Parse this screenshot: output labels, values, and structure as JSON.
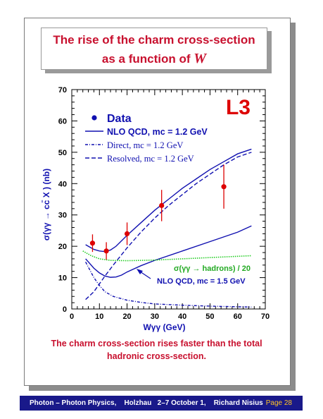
{
  "slide": {
    "title_line1": "The rise of the charm cross-section",
    "title_line2": "as a function of ",
    "title_symbol": "W",
    "caption_line1": "The charm cross-section rises faster than the total",
    "caption_line2": "hadronic cross-section."
  },
  "footer": {
    "text": "Photon – Photon Physics,    Holzhau   2–7 October 1,    Richard Nisius",
    "page": "Page 28"
  },
  "chart_data": {
    "type": "line",
    "title": "L3",
    "xlabel": "Wγγ  (GeV)",
    "ylabel": "σ(γγ → cc̄ X )  (nb)",
    "xlim": [
      0,
      70
    ],
    "ylim": [
      0,
      70
    ],
    "x_ticks": [
      0,
      10,
      20,
      30,
      40,
      50,
      60,
      70
    ],
    "y_ticks": [
      0,
      10,
      20,
      30,
      40,
      50,
      60,
      70
    ],
    "legend": [
      "Data",
      "NLO QCD, mc = 1.2 GeV",
      "Direct, mc = 1.2 GeV",
      "Resolved, mc = 1.2 GeV"
    ],
    "annotations": [
      "σ(γγ → hadrons) / 20",
      "NLO QCD, mc = 1.5 GeV"
    ],
    "series": [
      {
        "name": "Data",
        "style": "points",
        "color": "#dd0000",
        "x": [
          7.5,
          12.5,
          20,
          32.5,
          55
        ],
        "y": [
          21,
          18.5,
          24,
          33,
          39
        ],
        "err": [
          2.8,
          2.8,
          3.6,
          5.0,
          7.0
        ]
      },
      {
        "name": "NLO QCD, mc = 1.2 GeV",
        "style": "solid",
        "color": "#1010b0",
        "x": [
          5,
          8,
          10,
          12,
          14,
          16,
          20,
          25,
          30,
          35,
          40,
          45,
          50,
          55,
          60,
          65
        ],
        "y": [
          20.5,
          19,
          18.5,
          18.3,
          18.8,
          20,
          23.5,
          27.5,
          31.5,
          35,
          38.5,
          41.5,
          44.5,
          47,
          49.5,
          51
        ]
      },
      {
        "name": "Direct, mc = 1.2 GeV",
        "style": "dashdot",
        "color": "#1010b0",
        "x": [
          5,
          8,
          10,
          12,
          15,
          20,
          25,
          30,
          40,
          50,
          60,
          65
        ],
        "y": [
          15,
          10,
          7.5,
          5.5,
          4,
          2.8,
          2.1,
          1.6,
          1.2,
          0.9,
          0.7,
          0.6
        ]
      },
      {
        "name": "Resolved, mc = 1.2 GeV",
        "style": "dashed",
        "color": "#1010b0",
        "x": [
          5,
          8,
          10,
          12,
          15,
          20,
          25,
          30,
          35,
          40,
          45,
          50,
          55,
          60,
          65
        ],
        "y": [
          3,
          5.5,
          8,
          10.5,
          14,
          19.5,
          24.5,
          29,
          33,
          36.5,
          40,
          43,
          46,
          48.5,
          50
        ]
      },
      {
        "name": "NLO QCD, mc = 1.5 GeV",
        "style": "solid",
        "color": "#1010b0",
        "x": [
          5,
          8,
          10,
          12,
          14,
          16,
          18,
          20,
          25,
          30,
          40,
          50,
          60,
          65
        ],
        "y": [
          16,
          13,
          11.5,
          10.5,
          10.1,
          10.2,
          10.8,
          11.8,
          13.8,
          15.5,
          18.5,
          21.5,
          24.5,
          26.5
        ]
      },
      {
        "name": "σ(γγ → hadrons) / 20",
        "style": "dotted",
        "color": "#22cc22",
        "x": [
          4,
          7,
          10,
          14,
          20,
          30,
          40,
          50,
          60,
          65
        ],
        "y": [
          18.5,
          17,
          16,
          15.5,
          15.4,
          15.6,
          16,
          16.4,
          16.8,
          17
        ]
      }
    ]
  }
}
